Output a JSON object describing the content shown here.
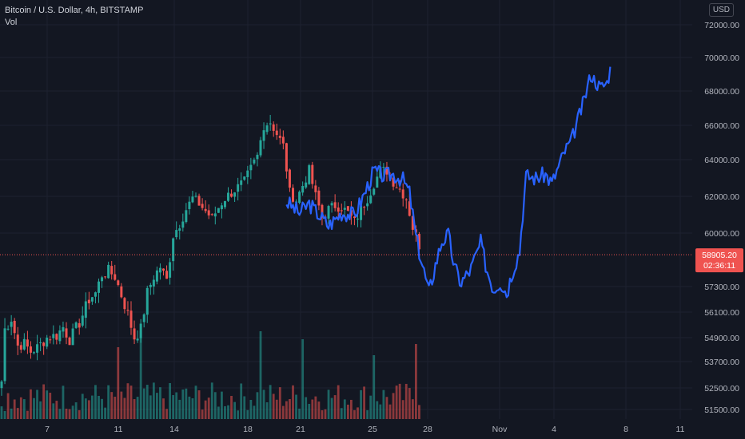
{
  "header": {
    "symbol_line": "Bitcoin / U.S. Dollar, 4h, BITSTAMP",
    "volume_label": "Vol",
    "currency_button": "USD"
  },
  "price_marker": {
    "price": "58905.20",
    "countdown": "02:36:11"
  },
  "colors": {
    "background": "#131722",
    "grid": "#1e2230",
    "up": "#26a69a",
    "down": "#ef5350",
    "projection": "#2962ff",
    "axis_text": "#b2b5be",
    "price_line": "#ef5350"
  },
  "chart_data": {
    "type": "candlestick",
    "y_axis": {
      "ticks": [
        72000,
        70000,
        68000,
        66000,
        64000,
        62000,
        60000,
        57300,
        56100,
        54900,
        53700,
        52500,
        51500
      ],
      "tick_labels": [
        "72000.00",
        "70000.00",
        "68000.00",
        "66000.00",
        "64000.00",
        "62000.00",
        "60000.00",
        "57300.00",
        "56100.00",
        "54900.00",
        "53700.00",
        "52500.00",
        "51500.00"
      ],
      "range": [
        51200,
        72800
      ]
    },
    "x_axis": {
      "ticks": [
        "7",
        "11",
        "14",
        "18",
        "21",
        "25",
        "28",
        "Nov",
        "4",
        "8",
        "11"
      ]
    },
    "ohlc_keypoints": [
      [
        0,
        52800
      ],
      [
        1,
        55300
      ],
      [
        3,
        55800
      ],
      [
        5,
        54500
      ],
      [
        7,
        54600
      ],
      [
        9,
        54200
      ],
      [
        11,
        54400
      ],
      [
        14,
        54900
      ],
      [
        17,
        55000
      ],
      [
        19,
        55400
      ],
      [
        21,
        54800
      ],
      [
        24,
        55600
      ],
      [
        27,
        56700
      ],
      [
        29,
        57000
      ],
      [
        31,
        57900
      ],
      [
        33,
        58100
      ],
      [
        35,
        57800
      ],
      [
        37,
        56900
      ],
      [
        39,
        56000
      ],
      [
        41,
        54900
      ],
      [
        43,
        55300
      ],
      [
        45,
        57000
      ],
      [
        47,
        57800
      ],
      [
        49,
        58300
      ],
      [
        51,
        57600
      ],
      [
        53,
        59900
      ],
      [
        55,
        60500
      ],
      [
        57,
        61300
      ],
      [
        59,
        61900
      ],
      [
        61,
        61600
      ],
      [
        63,
        61200
      ],
      [
        65,
        60800
      ],
      [
        67,
        61400
      ],
      [
        69,
        61900
      ],
      [
        71,
        62200
      ],
      [
        73,
        62500
      ],
      [
        75,
        62800
      ],
      [
        77,
        63500
      ],
      [
        79,
        64200
      ],
      [
        81,
        66000
      ],
      [
        83,
        66200
      ],
      [
        85,
        65500
      ],
      [
        87,
        64800
      ],
      [
        89,
        62200
      ],
      [
        91,
        61800
      ],
      [
        93,
        62600
      ],
      [
        95,
        63400
      ],
      [
        97,
        62000
      ],
      [
        99,
        60900
      ],
      [
        101,
        61300
      ],
      [
        103,
        61500
      ],
      [
        105,
        61400
      ],
      [
        107,
        61100
      ],
      [
        109,
        60600
      ],
      [
        111,
        61300
      ],
      [
        113,
        61900
      ],
      [
        115,
        62700
      ],
      [
        117,
        63400
      ],
      [
        119,
        63400
      ],
      [
        121,
        62800
      ],
      [
        123,
        62400
      ],
      [
        125,
        61900
      ],
      [
        127,
        60300
      ],
      [
        129,
        59400
      ]
    ],
    "projection_keypoints": [
      [
        88,
        61700
      ],
      [
        92,
        61100
      ],
      [
        95,
        61600
      ],
      [
        98,
        61000
      ],
      [
        101,
        60400
      ],
      [
        105,
        61100
      ],
      [
        109,
        61000
      ],
      [
        112,
        62100
      ],
      [
        115,
        63400
      ],
      [
        118,
        63100
      ],
      [
        121,
        63200
      ],
      [
        124,
        62900
      ],
      [
        126,
        62200
      ],
      [
        128,
        59800
      ],
      [
        130,
        58400
      ],
      [
        132,
        57000
      ],
      [
        134,
        58400
      ],
      [
        136,
        59600
      ],
      [
        138,
        59900
      ],
      [
        140,
        58200
      ],
      [
        142,
        57500
      ],
      [
        145,
        58200
      ],
      [
        148,
        59500
      ],
      [
        150,
        58100
      ],
      [
        152,
        57200
      ],
      [
        154,
        57600
      ],
      [
        156,
        57000
      ],
      [
        158,
        58200
      ],
      [
        160,
        59100
      ],
      [
        162,
        63100
      ],
      [
        165,
        63000
      ],
      [
        168,
        63200
      ],
      [
        170,
        62700
      ],
      [
        172,
        63600
      ],
      [
        174,
        64500
      ],
      [
        176,
        65100
      ],
      [
        178,
        66300
      ],
      [
        180,
        67500
      ],
      [
        182,
        69000
      ],
      [
        183,
        68700
      ],
      [
        185,
        68200
      ],
      [
        187,
        68500
      ],
      [
        188,
        69300
      ]
    ],
    "volume": {
      "note": "relative heights",
      "peaks": [
        [
          80,
          0.55
        ],
        [
          93,
          0.5
        ],
        [
          115,
          0.4
        ],
        [
          128,
          0.47
        ],
        [
          43,
          0.55
        ],
        [
          36,
          0.45
        ]
      ]
    },
    "current_price": 58905.2
  }
}
